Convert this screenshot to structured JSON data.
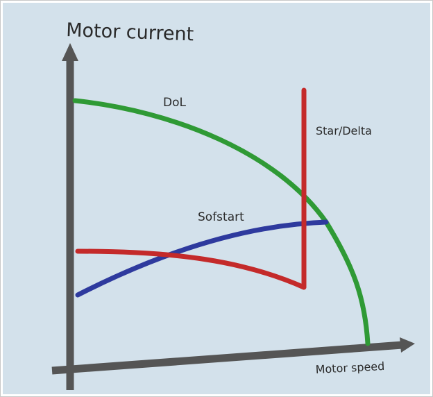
{
  "y_axis_label": "Motor current",
  "x_axis_label": "Motor speed",
  "curves": [
    {
      "label": "DoL"
    },
    {
      "label": "Star/Delta"
    },
    {
      "label": "Sofstart"
    }
  ]
}
